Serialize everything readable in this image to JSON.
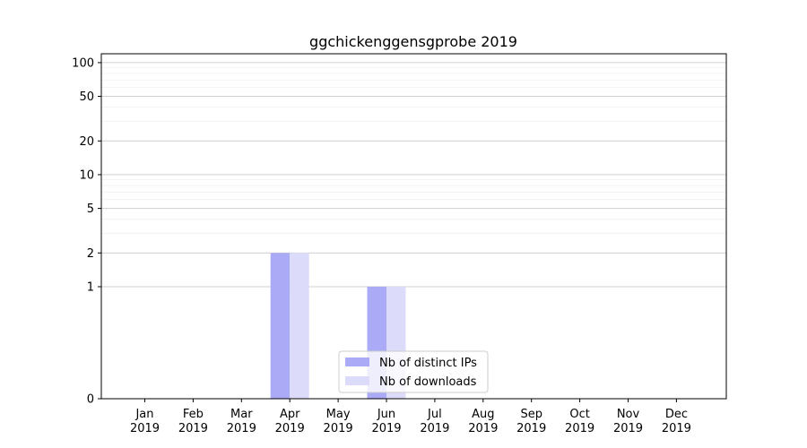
{
  "chart_data": {
    "type": "bar",
    "title": "ggchickenggensgprobe 2019",
    "xlabel": "",
    "ylabel": "",
    "y_scale": "symlog",
    "ylim": [
      0,
      120
    ],
    "yticks": [
      0,
      1,
      2,
      5,
      10,
      20,
      50,
      100
    ],
    "ytick_labels": [
      "0",
      "1",
      "2",
      "5",
      "10",
      "20",
      "50",
      "100"
    ],
    "categories": [
      "Jan\n2019",
      "Feb\n2019",
      "Mar\n2019",
      "Apr\n2019",
      "May\n2019",
      "Jun\n2019",
      "Jul\n2019",
      "Aug\n2019",
      "Sep\n2019",
      "Oct\n2019",
      "Nov\n2019",
      "Dec\n2019"
    ],
    "series": [
      {
        "name": "Nb of distinct IPs",
        "color": "#aaaaf6",
        "values": [
          0,
          0,
          0,
          2,
          0,
          1,
          0,
          0,
          0,
          0,
          0,
          0
        ]
      },
      {
        "name": "Nb of downloads",
        "color": "#dcdcfa",
        "values": [
          0,
          0,
          0,
          2,
          0,
          1,
          0,
          0,
          0,
          0,
          0,
          0
        ]
      }
    ],
    "grid": true,
    "legend_position": "lower center"
  }
}
